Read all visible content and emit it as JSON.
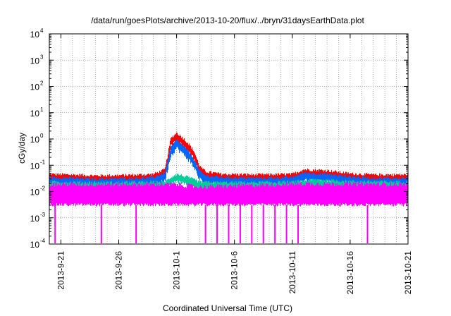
{
  "chart_data": {
    "type": "line",
    "title": "/data/run/goesPlots/archive/2013-10-20/flux/../bryn/31daysEarthData.plot",
    "xlabel": "Coordinated Universal Time (UTC)",
    "ylabel": "cGy/day",
    "y_scale": "log",
    "ylim": [
      0.0001,
      10000
    ],
    "y_ticks": [
      {
        "exp": "-4",
        "value": 0.0001
      },
      {
        "exp": "-3",
        "value": 0.001
      },
      {
        "exp": "-2",
        "value": 0.01
      },
      {
        "exp": "-1",
        "value": 0.1
      },
      {
        "exp": "0",
        "value": 1
      },
      {
        "exp": "1",
        "value": 10
      },
      {
        "exp": "2",
        "value": 100
      },
      {
        "exp": "3",
        "value": 1000
      },
      {
        "exp": "4",
        "value": 10000
      }
    ],
    "y_tick_base": "10",
    "xlim": [
      "2013-09-20",
      "2013-10-21"
    ],
    "x_ticks": [
      {
        "label": "2013-9-21",
        "date": "2013-09-21"
      },
      {
        "label": "2013-9-26",
        "date": "2013-09-26"
      },
      {
        "label": "2013-10-1",
        "date": "2013-10-01"
      },
      {
        "label": "2013-10-6",
        "date": "2013-10-06"
      },
      {
        "label": "2013-10-11",
        "date": "2013-10-11"
      },
      {
        "label": "2013-10-16",
        "date": "2013-10-16"
      },
      {
        "label": "2013-10-21",
        "date": "2013-10-21"
      }
    ],
    "grid": true,
    "grid_style": "dotted",
    "legend": "none",
    "series": [
      {
        "color": "#ff0000",
        "points": [
          [
            "2013-09-20",
            0.04
          ],
          [
            "2013-09-22",
            0.038
          ],
          [
            "2013-09-24",
            0.035
          ],
          [
            "2013-09-26",
            0.036
          ],
          [
            "2013-09-28",
            0.038
          ],
          [
            "2013-09-29",
            0.04
          ],
          [
            "2013-09-30",
            0.06
          ],
          [
            "2013-09-30T12:00",
            0.9
          ],
          [
            "2013-10-01",
            1.5
          ],
          [
            "2013-10-01T12:00",
            1.0
          ],
          [
            "2013-10-02",
            0.6
          ],
          [
            "2013-10-02T12:00",
            0.3
          ],
          [
            "2013-10-03",
            0.08
          ],
          [
            "2013-10-03T12:00",
            0.05
          ],
          [
            "2013-10-05",
            0.04
          ],
          [
            "2013-10-08",
            0.038
          ],
          [
            "2013-10-11",
            0.04
          ],
          [
            "2013-10-12",
            0.06
          ],
          [
            "2013-10-14",
            0.055
          ],
          [
            "2013-10-16",
            0.042
          ],
          [
            "2013-10-18",
            0.038
          ],
          [
            "2013-10-21",
            0.038
          ]
        ]
      },
      {
        "color": "#0066ff",
        "points": [
          [
            "2013-09-20",
            0.03
          ],
          [
            "2013-09-22",
            0.028
          ],
          [
            "2013-09-24",
            0.026
          ],
          [
            "2013-09-26",
            0.027
          ],
          [
            "2013-09-28",
            0.028
          ],
          [
            "2013-09-29",
            0.03
          ],
          [
            "2013-09-30",
            0.045
          ],
          [
            "2013-09-30T12:00",
            0.4
          ],
          [
            "2013-10-01",
            0.8
          ],
          [
            "2013-10-01T12:00",
            0.5
          ],
          [
            "2013-10-02",
            0.3
          ],
          [
            "2013-10-02T12:00",
            0.15
          ],
          [
            "2013-10-03",
            0.05
          ],
          [
            "2013-10-03T12:00",
            0.035
          ],
          [
            "2013-10-05",
            0.03
          ],
          [
            "2013-10-08",
            0.028
          ],
          [
            "2013-10-11",
            0.03
          ],
          [
            "2013-10-12",
            0.045
          ],
          [
            "2013-10-14",
            0.04
          ],
          [
            "2013-10-16",
            0.032
          ],
          [
            "2013-10-18",
            0.028
          ],
          [
            "2013-10-21",
            0.028
          ]
        ]
      },
      {
        "color": "#00cc99",
        "points": [
          [
            "2013-09-20",
            0.02
          ],
          [
            "2013-09-25",
            0.019
          ],
          [
            "2013-09-30",
            0.02
          ],
          [
            "2013-09-30T12:00",
            0.03
          ],
          [
            "2013-10-01",
            0.04
          ],
          [
            "2013-10-01T12:00",
            0.035
          ],
          [
            "2013-10-02",
            0.03
          ],
          [
            "2013-10-02T12:00",
            0.025
          ],
          [
            "2013-10-03",
            0.02
          ],
          [
            "2013-10-06",
            0.019
          ],
          [
            "2013-10-11",
            0.02
          ],
          [
            "2013-10-13",
            0.025
          ],
          [
            "2013-10-16",
            0.021
          ],
          [
            "2013-10-21",
            0.02
          ]
        ]
      },
      {
        "color": "#ff00ff",
        "points": [
          [
            "2013-09-20",
            0.015
          ],
          [
            "2013-10-01",
            0.015
          ],
          [
            "2013-10-03",
            0.012
          ],
          [
            "2013-10-12",
            0.016
          ],
          [
            "2013-10-21",
            0.015
          ]
        ],
        "floor": 0.003,
        "dropouts": [
          "2013-09-20T12:00",
          "2013-09-24T12:00",
          "2013-09-27T12:00",
          "2013-10-03T12:00",
          "2013-10-04T12:00",
          "2013-10-05T12:00",
          "2013-10-06T12:00",
          "2013-10-07T12:00",
          "2013-10-08T12:00",
          "2013-10-09T12:00",
          "2013-10-10T12:00",
          "2013-10-11T12:00",
          "2013-10-17T12:00"
        ]
      }
    ]
  }
}
